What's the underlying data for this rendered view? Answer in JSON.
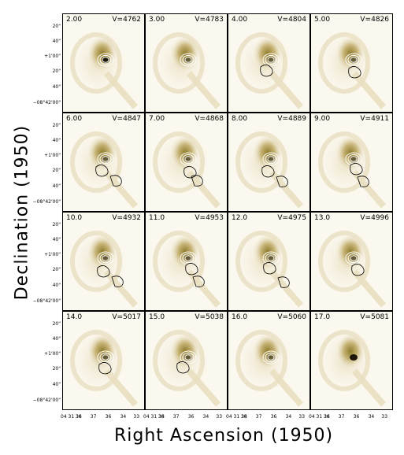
{
  "figure": {
    "xlabel": "Right Ascension (1950)",
    "ylabel": "Declination (1950)",
    "dec_ticks": [
      "20\"",
      "40\"",
      "+1'00\"",
      "20\"",
      "40\"",
      "−08°42'00\""
    ],
    "ra_ticks": [
      "04h31m38s",
      "36s",
      "37s",
      "36s",
      "34s",
      "33s"
    ],
    "ra_tick_labels_compact": [
      "04 31 38",
      "36",
      "37",
      "36",
      "34",
      "33"
    ],
    "panels": [
      {
        "channel": "2.00",
        "velocity": "V=4762"
      },
      {
        "channel": "3.00",
        "velocity": "V=4783"
      },
      {
        "channel": "4.00",
        "velocity": "V=4804"
      },
      {
        "channel": "5.00",
        "velocity": "V=4826"
      },
      {
        "channel": "6.00",
        "velocity": "V=4847"
      },
      {
        "channel": "7.00",
        "velocity": "V=4868"
      },
      {
        "channel": "8.00",
        "velocity": "V=4889"
      },
      {
        "channel": "9.00",
        "velocity": "V=4911"
      },
      {
        "channel": "10.0",
        "velocity": "V=4932"
      },
      {
        "channel": "11.0",
        "velocity": "V=4953"
      },
      {
        "channel": "12.0",
        "velocity": "V=4975"
      },
      {
        "channel": "13.0",
        "velocity": "V=4996"
      },
      {
        "channel": "14.0",
        "velocity": "V=5017"
      },
      {
        "channel": "15.0",
        "velocity": "V=5038"
      },
      {
        "channel": "16.0",
        "velocity": "V=5060"
      },
      {
        "channel": "17.0",
        "velocity": "V=5081"
      }
    ],
    "colors": {
      "background": "#fbf8ef",
      "galaxy_outer": "#e9dfc0",
      "galaxy_mid": "#c9b67a",
      "galaxy_inner": "#8f7c2c",
      "nucleus": "#1c1708",
      "contour_black": "#000000",
      "contour_white": "#ffffff"
    }
  }
}
